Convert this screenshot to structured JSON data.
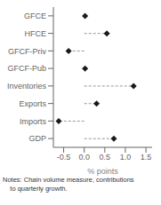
{
  "chart_data": {
    "type": "lollipop",
    "orientation": "horizontal",
    "categories": [
      "GFCE",
      "HFCE",
      "GFCF-Priv",
      "GFCF-Pub",
      "Inventories",
      "Exports",
      "Imports",
      "GDP"
    ],
    "values": [
      0.02,
      0.55,
      -0.38,
      0.02,
      1.2,
      0.3,
      -0.62,
      0.72
    ],
    "xlim": [
      -0.75,
      1.65
    ],
    "xticks": [
      -0.5,
      {
        "value": 0.0,
        "label": "0.0"
      },
      0.5,
      {
        "value": 1.0,
        "label": "1.0"
      },
      1.5
    ],
    "xlabel": "% points",
    "color": "#1a1a1a",
    "line_style": "dashed",
    "marker": "diamond",
    "grid": false,
    "annotations": [
      "Notes: Chain volume measure, contributions",
      "    to quarterly growth."
    ]
  }
}
